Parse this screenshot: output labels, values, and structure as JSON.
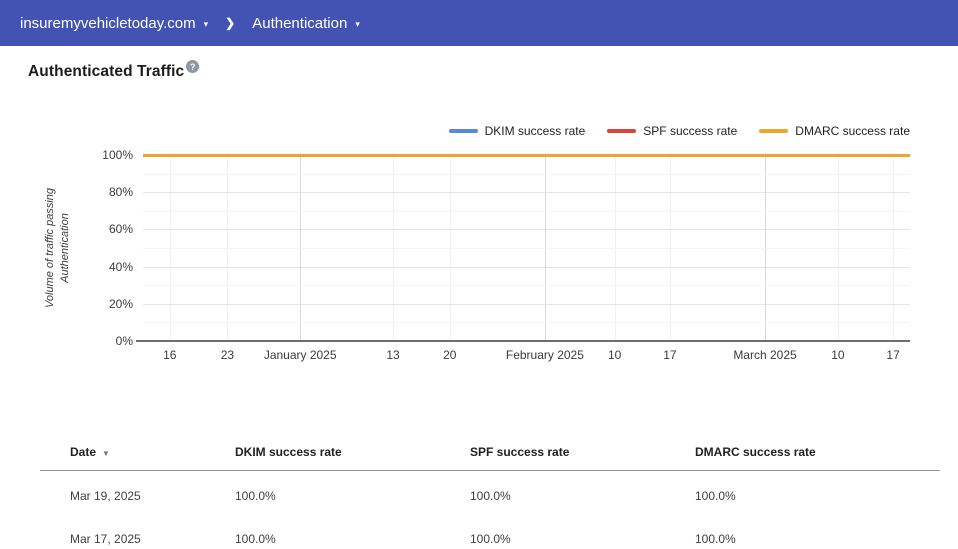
{
  "topbar": {
    "domain_selector": {
      "label": "insuremyvehicletoday.com",
      "caret": "▾"
    },
    "separator": "❯",
    "section_selector": {
      "label": "Authentication",
      "caret": "▾"
    },
    "bg_color": "#4353b4"
  },
  "page": {
    "title": "Authenticated Traffic",
    "help_icon": "?"
  },
  "chart_data": {
    "type": "line",
    "title": "Authenticated Traffic",
    "ylabel": "Volume of traffic passing Authentication",
    "ylabel_lines": [
      "Volume of traffic passing",
      "Authentication"
    ],
    "ylim": [
      0,
      100
    ],
    "grid": true,
    "legend_position": "top-right",
    "y_tick_values": [
      0,
      20,
      40,
      60,
      80,
      100
    ],
    "y_tick_labels": [
      "0%",
      "20%",
      "40%",
      "60%",
      "80%",
      "100%"
    ],
    "x_ticks": [
      {
        "label": "16",
        "pos": 0.035,
        "month": false
      },
      {
        "label": "23",
        "pos": 0.11,
        "month": false
      },
      {
        "label": "January 2025",
        "pos": 0.205,
        "month": true
      },
      {
        "label": "13",
        "pos": 0.326,
        "month": false
      },
      {
        "label": "20",
        "pos": 0.4,
        "month": false
      },
      {
        "label": "February 2025",
        "pos": 0.524,
        "month": true
      },
      {
        "label": "10",
        "pos": 0.615,
        "month": false
      },
      {
        "label": "17",
        "pos": 0.687,
        "month": false
      },
      {
        "label": "March 2025",
        "pos": 0.811,
        "month": true
      },
      {
        "label": "10",
        "pos": 0.906,
        "month": false
      },
      {
        "label": "17",
        "pos": 0.978,
        "month": false
      }
    ],
    "series": [
      {
        "name": "DKIM success rate",
        "color": "#5c85de",
        "constant_value": 100
      },
      {
        "name": "SPF success rate",
        "color": "#d9443c",
        "constant_value": 100
      },
      {
        "name": "DMARC success rate",
        "color": "#f0a42c",
        "constant_value": 100
      }
    ]
  },
  "table": {
    "columns": [
      {
        "label": "Date",
        "sort_icon": "▼"
      },
      {
        "label": "DKIM success rate"
      },
      {
        "label": "SPF success rate"
      },
      {
        "label": "DMARC success rate"
      }
    ],
    "rows": [
      {
        "date": "Mar 19, 2025",
        "dkim": "100.0%",
        "spf": "100.0%",
        "dmarc": "100.0%"
      },
      {
        "date": "Mar 17, 2025",
        "dkim": "100.0%",
        "spf": "100.0%",
        "dmarc": "100.0%"
      }
    ]
  }
}
